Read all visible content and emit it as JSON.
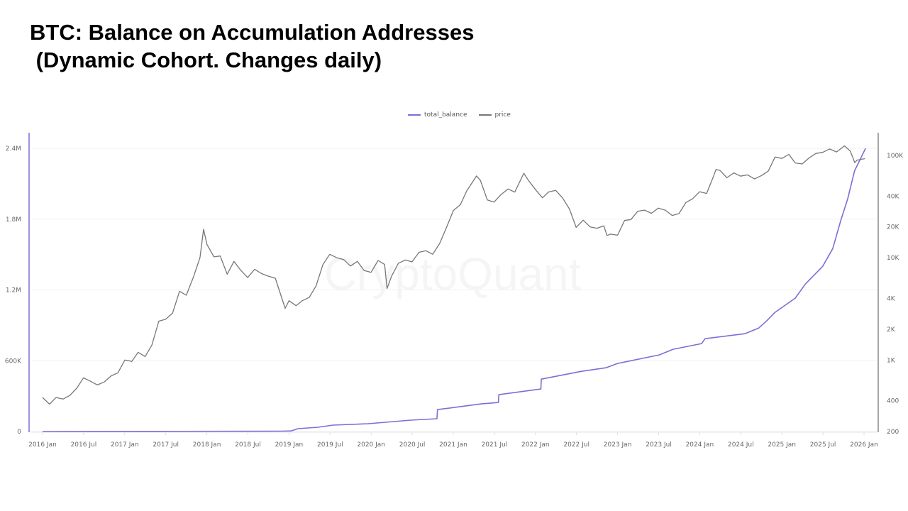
{
  "title": {
    "line1": "BTC: Balance on Accumulation Addresses",
    "line2": " (Dynamic Cohort. Changes daily)"
  },
  "watermark": "CryptoQuant",
  "colors": {
    "total_balance": "#7b6fd6",
    "price": "#777777"
  },
  "chart_data": {
    "type": "line",
    "title": "BTC: Balance on Accumulation Addresses (Dynamic Cohort. Changes daily)",
    "legend_position": "top-center",
    "grid": true,
    "x_ticks": [
      "2016 Jan",
      "2016 Jul",
      "2017 Jan",
      "2017 Jul",
      "2018 Jan",
      "2018 Jul",
      "2019 Jan",
      "2019 Jul",
      "2020 Jan",
      "2020 Jul",
      "2021 Jan",
      "2021 Jul",
      "2022 Jan",
      "2022 Jul",
      "2023 Jan",
      "2023 Jul",
      "2024 Jan",
      "2024 Jul",
      "2025 Jan",
      "2025 Jul",
      "2026 Jan"
    ],
    "xlim": [
      "2016-01-01",
      "2026-01-01"
    ],
    "y_left": {
      "ticks": [
        "0",
        "600K",
        "1.2M",
        "1.8M",
        "2.4M"
      ],
      "tick_values": [
        0,
        600000,
        1200000,
        1800000,
        2400000
      ],
      "ylim": [
        0,
        2400000
      ],
      "scale": "linear"
    },
    "y_right": {
      "ticks": [
        "200",
        "400",
        "1K",
        "2K",
        "4K",
        "10K",
        "20K",
        "40K",
        "100K"
      ],
      "tick_values": [
        200,
        400,
        1000,
        2000,
        4000,
        10000,
        20000,
        40000,
        100000
      ],
      "ylim": [
        200,
        100000
      ],
      "scale": "log"
    },
    "series": [
      {
        "name": "total_balance",
        "axis": "left",
        "points": [
          [
            "2016-01-01",
            0
          ],
          [
            "2017-06-01",
            1000
          ],
          [
            "2018-12-01",
            3000
          ],
          [
            "2019-01-10",
            5000
          ],
          [
            "2019-02-10",
            24000
          ],
          [
            "2019-05-10",
            36000
          ],
          [
            "2019-07-15",
            54000
          ],
          [
            "2019-12-20",
            66000
          ],
          [
            "2020-06-25",
            96000
          ],
          [
            "2020-10-20",
            108000
          ],
          [
            "2020-10-22",
            186000
          ],
          [
            "2021-01-05",
            204000
          ],
          [
            "2021-05-05",
            234000
          ],
          [
            "2021-07-20",
            246000
          ],
          [
            "2021-07-22",
            312000
          ],
          [
            "2022-01-25",
            360000
          ],
          [
            "2022-01-27",
            444000
          ],
          [
            "2022-07-25",
            510000
          ],
          [
            "2022-11-10",
            540000
          ],
          [
            "2023-01-01",
            577000
          ],
          [
            "2023-07-05",
            649000
          ],
          [
            "2023-09-05",
            697000
          ],
          [
            "2024-01-10",
            745000
          ],
          [
            "2024-01-25",
            787000
          ],
          [
            "2024-07-20",
            829000
          ],
          [
            "2024-09-20",
            877000
          ],
          [
            "2024-10-25",
            937000
          ],
          [
            "2024-12-01",
            1010000
          ],
          [
            "2025-03-01",
            1130000
          ],
          [
            "2025-04-15",
            1250000
          ],
          [
            "2025-07-01",
            1400000
          ],
          [
            "2025-08-15",
            1550000
          ],
          [
            "2025-09-20",
            1790000
          ],
          [
            "2025-10-20",
            1970000
          ],
          [
            "2025-11-20",
            2210000
          ],
          [
            "2026-01-08",
            2400000
          ]
        ]
      },
      {
        "name": "price",
        "axis": "right",
        "points": [
          [
            "2016-01-01",
            430
          ],
          [
            "2016-02-01",
            370
          ],
          [
            "2016-03-01",
            430
          ],
          [
            "2016-04-01",
            415
          ],
          [
            "2016-05-01",
            450
          ],
          [
            "2016-06-01",
            530
          ],
          [
            "2016-07-01",
            670
          ],
          [
            "2016-08-01",
            620
          ],
          [
            "2016-09-01",
            570
          ],
          [
            "2016-10-01",
            610
          ],
          [
            "2016-11-01",
            700
          ],
          [
            "2016-12-01",
            750
          ],
          [
            "2017-01-01",
            1000
          ],
          [
            "2017-02-01",
            970
          ],
          [
            "2017-03-01",
            1190
          ],
          [
            "2017-04-01",
            1080
          ],
          [
            "2017-05-01",
            1400
          ],
          [
            "2017-06-01",
            2400
          ],
          [
            "2017-07-01",
            2500
          ],
          [
            "2017-08-01",
            2870
          ],
          [
            "2017-09-01",
            4700
          ],
          [
            "2017-10-01",
            4300
          ],
          [
            "2017-11-01",
            6400
          ],
          [
            "2017-12-01",
            10000
          ],
          [
            "2017-12-17",
            19000
          ],
          [
            "2018-01-01",
            13500
          ],
          [
            "2018-02-01",
            10200
          ],
          [
            "2018-03-01",
            10400
          ],
          [
            "2018-04-01",
            6900
          ],
          [
            "2018-05-01",
            9200
          ],
          [
            "2018-06-01",
            7500
          ],
          [
            "2018-07-01",
            6400
          ],
          [
            "2018-08-01",
            7700
          ],
          [
            "2018-09-01",
            7000
          ],
          [
            "2018-10-01",
            6600
          ],
          [
            "2018-11-01",
            6300
          ],
          [
            "2018-12-15",
            3200
          ],
          [
            "2019-01-01",
            3800
          ],
          [
            "2019-02-01",
            3400
          ],
          [
            "2019-03-01",
            3800
          ],
          [
            "2019-04-01",
            4100
          ],
          [
            "2019-05-01",
            5300
          ],
          [
            "2019-06-01",
            8600
          ],
          [
            "2019-07-01",
            10800
          ],
          [
            "2019-08-01",
            10000
          ],
          [
            "2019-09-01",
            9600
          ],
          [
            "2019-10-01",
            8300
          ],
          [
            "2019-11-01",
            9200
          ],
          [
            "2019-12-01",
            7500
          ],
          [
            "2020-01-01",
            7200
          ],
          [
            "2020-02-01",
            9400
          ],
          [
            "2020-03-01",
            8600
          ],
          [
            "2020-03-12",
            5000
          ],
          [
            "2020-04-01",
            6600
          ],
          [
            "2020-05-01",
            8800
          ],
          [
            "2020-06-01",
            9500
          ],
          [
            "2020-07-01",
            9100
          ],
          [
            "2020-08-01",
            11300
          ],
          [
            "2020-09-01",
            11700
          ],
          [
            "2020-10-01",
            10800
          ],
          [
            "2020-11-01",
            13800
          ],
          [
            "2020-12-01",
            19700
          ],
          [
            "2021-01-01",
            29000
          ],
          [
            "2021-02-01",
            33000
          ],
          [
            "2021-03-01",
            45000
          ],
          [
            "2021-04-14",
            63000
          ],
          [
            "2021-05-01",
            57000
          ],
          [
            "2021-06-01",
            36700
          ],
          [
            "2021-07-01",
            35000
          ],
          [
            "2021-08-01",
            41500
          ],
          [
            "2021-09-01",
            47000
          ],
          [
            "2021-10-01",
            43800
          ],
          [
            "2021-11-10",
            67000
          ],
          [
            "2021-12-01",
            57000
          ],
          [
            "2022-01-01",
            46300
          ],
          [
            "2022-02-01",
            38500
          ],
          [
            "2022-03-01",
            44000
          ],
          [
            "2022-04-01",
            45500
          ],
          [
            "2022-05-01",
            38500
          ],
          [
            "2022-06-01",
            30000
          ],
          [
            "2022-07-01",
            19800
          ],
          [
            "2022-08-01",
            23300
          ],
          [
            "2022-09-01",
            20000
          ],
          [
            "2022-10-01",
            19400
          ],
          [
            "2022-11-01",
            20500
          ],
          [
            "2022-11-15",
            16500
          ],
          [
            "2022-12-01",
            17000
          ],
          [
            "2023-01-01",
            16600
          ],
          [
            "2023-02-01",
            23100
          ],
          [
            "2023-03-01",
            23600
          ],
          [
            "2023-04-01",
            28500
          ],
          [
            "2023-05-01",
            29200
          ],
          [
            "2023-06-01",
            27200
          ],
          [
            "2023-07-01",
            30500
          ],
          [
            "2023-08-01",
            29200
          ],
          [
            "2023-09-01",
            25900
          ],
          [
            "2023-10-01",
            27000
          ],
          [
            "2023-11-01",
            34700
          ],
          [
            "2023-12-01",
            37700
          ],
          [
            "2024-01-01",
            44200
          ],
          [
            "2024-02-01",
            42500
          ],
          [
            "2024-03-01",
            61200
          ],
          [
            "2024-03-14",
            73000
          ],
          [
            "2024-04-01",
            71300
          ],
          [
            "2024-05-01",
            60600
          ],
          [
            "2024-06-01",
            67500
          ],
          [
            "2024-07-01",
            62700
          ],
          [
            "2024-08-01",
            64600
          ],
          [
            "2024-09-01",
            58900
          ],
          [
            "2024-10-01",
            63300
          ],
          [
            "2024-11-01",
            70200
          ],
          [
            "2024-12-01",
            96400
          ],
          [
            "2025-01-01",
            93500
          ],
          [
            "2025-02-01",
            102400
          ],
          [
            "2025-03-01",
            84400
          ],
          [
            "2025-04-01",
            82500
          ],
          [
            "2025-05-01",
            94200
          ],
          [
            "2025-06-01",
            104600
          ],
          [
            "2025-07-01",
            107100
          ],
          [
            "2025-08-01",
            115700
          ],
          [
            "2025-09-01",
            108200
          ],
          [
            "2025-10-06",
            124000
          ],
          [
            "2025-11-01",
            110000
          ],
          [
            "2025-11-21",
            85000
          ],
          [
            "2025-12-01",
            90000
          ],
          [
            "2026-01-05",
            93000
          ]
        ]
      }
    ]
  }
}
